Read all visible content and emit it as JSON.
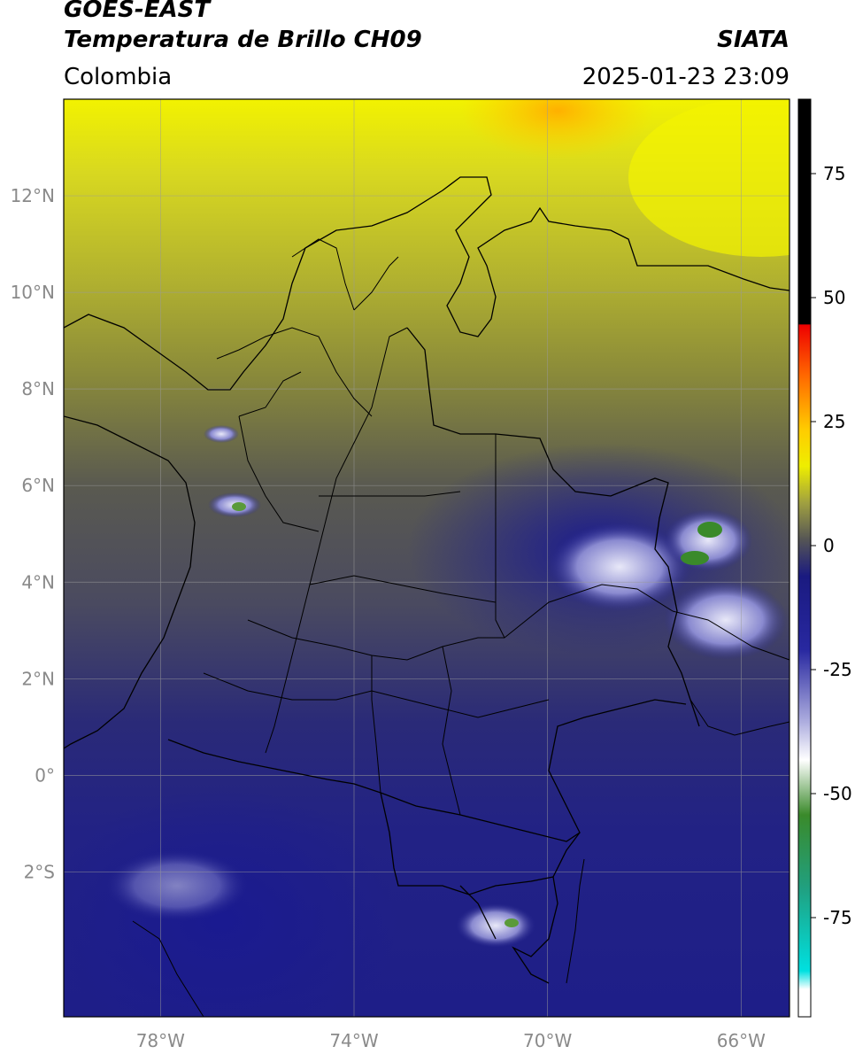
{
  "header": {
    "satellite": "GOES-EAST",
    "product": "Temperatura de Brillo CH09",
    "source": "SIATA",
    "region": "Colombia",
    "timestamp": "2025-01-23 23:09"
  },
  "map": {
    "lon_range": [
      -80,
      -65
    ],
    "lat_range": [
      -5,
      14
    ],
    "lat_ticks": [
      {
        "value": 12,
        "label": "12°N"
      },
      {
        "value": 10,
        "label": "10°N"
      },
      {
        "value": 8,
        "label": "8°N"
      },
      {
        "value": 6,
        "label": "6°N"
      },
      {
        "value": 4,
        "label": "4°N"
      },
      {
        "value": 2,
        "label": "2°N"
      },
      {
        "value": 0,
        "label": "0°"
      },
      {
        "value": -2,
        "label": "2°S"
      }
    ],
    "lon_ticks": [
      {
        "value": -78,
        "label": "78°W"
      },
      {
        "value": -74,
        "label": "74°W"
      },
      {
        "value": -70,
        "label": "70°W"
      },
      {
        "value": -66,
        "label": "66°W"
      }
    ],
    "colors": {
      "yellow": "#e8e800",
      "olive": "#8a8a3a",
      "gray": "#555555",
      "navy": "#1a1a7a",
      "cloud": "#c8c8e8",
      "cold_core": "#3a8a2a"
    }
  },
  "colorbar": {
    "range": [
      -95,
      90
    ],
    "ticks": [
      {
        "value": 75,
        "label": "75"
      },
      {
        "value": 50,
        "label": "50"
      },
      {
        "value": 25,
        "label": "25"
      },
      {
        "value": 0,
        "label": "0"
      },
      {
        "value": -25,
        "label": "-25"
      },
      {
        "value": -50,
        "label": "-50"
      },
      {
        "value": -75,
        "label": "-75"
      }
    ]
  }
}
